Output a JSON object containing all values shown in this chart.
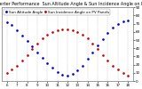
{
  "title": "Solar PV/Inverter Performance  Sun Altitude Angle & Sun Incidence Angle on PV Panels",
  "bg_color": "#ffffff",
  "plot_bg": "#ffffff",
  "grid_color": "#aaaaaa",
  "blue_label": "Sun Altitude Angle",
  "red_label": "Sun Incidence Angle on PV Panels",
  "x_values": [
    6.0,
    6.5,
    7.0,
    7.5,
    8.0,
    8.5,
    9.0,
    9.5,
    10.0,
    10.5,
    11.0,
    11.5,
    12.0,
    12.5,
    13.0,
    13.5,
    14.0,
    14.5,
    15.0,
    15.5,
    16.0,
    16.5,
    17.0,
    17.5,
    18.0
  ],
  "blue_y": [
    72,
    68,
    62,
    56,
    49,
    42,
    35,
    28,
    22,
    16,
    11,
    8,
    7,
    9,
    13,
    19,
    27,
    35,
    43,
    51,
    59,
    65,
    70,
    73,
    74
  ],
  "red_y": [
    10,
    14,
    19,
    25,
    32,
    39,
    46,
    52,
    57,
    60,
    62,
    63,
    63,
    62,
    60,
    57,
    52,
    46,
    39,
    32,
    25,
    19,
    14,
    10,
    7
  ],
  "ylim": [
    0,
    90
  ],
  "xlim": [
    5.5,
    18.5
  ],
  "yticks_right": [
    0,
    10,
    20,
    30,
    40,
    50,
    60,
    70,
    80,
    90
  ],
  "xtick_positions": [
    6,
    7,
    8,
    9,
    10,
    11,
    12,
    13,
    14,
    15,
    16,
    17,
    18
  ],
  "xtick_labels": [
    "6",
    "7",
    "8",
    "9",
    "10",
    "11",
    "12",
    "13",
    "14",
    "15",
    "16",
    "17",
    "18"
  ],
  "title_color": "#000000",
  "title_fontsize": 3.5,
  "tick_fontsize": 3.0,
  "legend_fontsize": 3.0,
  "blue_color": "#0000cc",
  "red_color": "#cc0000",
  "dot_size": 1.8,
  "spine_color": "#888888"
}
